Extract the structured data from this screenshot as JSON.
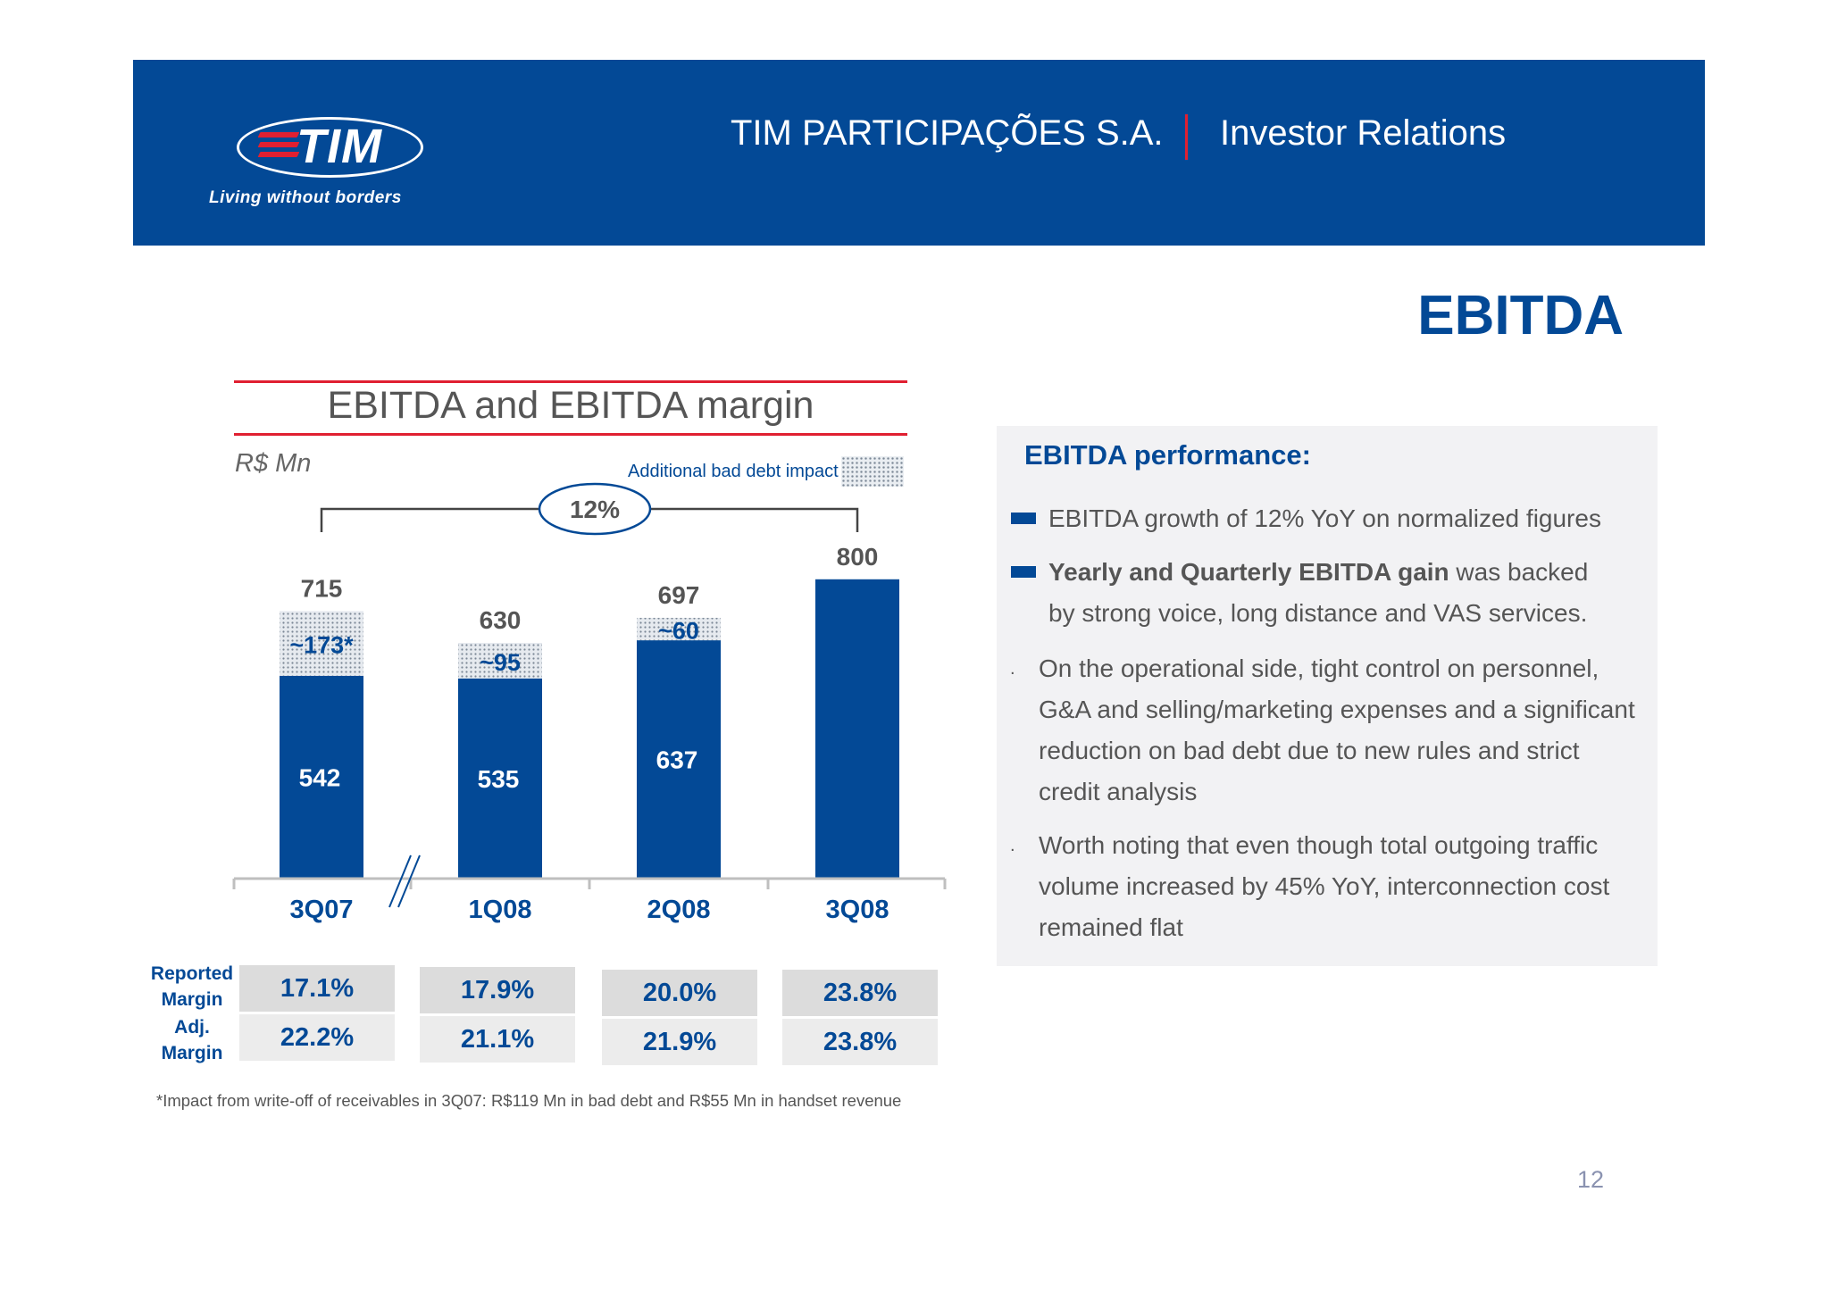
{
  "header": {
    "logo": {
      "text": "TIM",
      "tagline": "Living without borders"
    },
    "company": "TIM PARTICIPAÇÕES S.A.",
    "section": "Investor Relations"
  },
  "page_title": "EBITDA",
  "chart_data": {
    "type": "bar",
    "title": "EBITDA and EBITDA margin",
    "unit": "R$ Mn",
    "categories": [
      "3Q07",
      "1Q08",
      "2Q08",
      "3Q08"
    ],
    "totals": [
      "715",
      "630",
      "697",
      "800"
    ],
    "series": [
      {
        "name": "EBITDA",
        "values": [
          542,
          535,
          637,
          800
        ],
        "labels": [
          "542",
          "535",
          "637",
          ""
        ],
        "color": "#034996"
      },
      {
        "name": "Additional bad debt impact",
        "values": [
          173,
          95,
          60,
          0
        ],
        "labels": [
          "~173*",
          "~95",
          "~60",
          ""
        ],
        "color": "#dfe4ea"
      }
    ],
    "growth": {
      "label": "12%",
      "from": "3Q07",
      "to": "3Q08"
    },
    "legend": {
      "label": "Additional bad debt impact",
      "position": "top-right"
    },
    "axis_break_between": [
      "3Q07",
      "1Q08"
    ],
    "ylim": [
      0,
      900
    ]
  },
  "margins": {
    "reported_label": "Reported Margin",
    "adjusted_label": "Adj. Margin",
    "reported": [
      "17.1%",
      "17.9%",
      "20.0%",
      "23.8%"
    ],
    "adjusted": [
      "22.2%",
      "21.1%",
      "21.9%",
      "23.8%"
    ]
  },
  "footnote": "*Impact from write-off of receivables in 3Q07: R$119 Mn in bad debt and R$55 Mn in handset revenue",
  "performance": {
    "title": "EBITDA performance:",
    "bullets": [
      {
        "marker": "square",
        "bold": "",
        "text": "EBITDA growth of 12% YoY on normalized figures"
      },
      {
        "marker": "square",
        "bold": "Yearly and Quarterly EBITDA gain",
        "text": " was backed by strong voice, long distance and VAS services."
      },
      {
        "marker": "dot",
        "bold": "",
        "text": "On the operational side, tight control on personnel, G&A and selling/marketing expenses and a significant reduction on bad debt due to new rules and strict credit analysis"
      },
      {
        "marker": "dot",
        "bold": "",
        "text": "Worth noting that even though total outgoing traffic volume increased by 45% YoY, interconnection cost remained flat"
      }
    ]
  },
  "page_number": "12"
}
